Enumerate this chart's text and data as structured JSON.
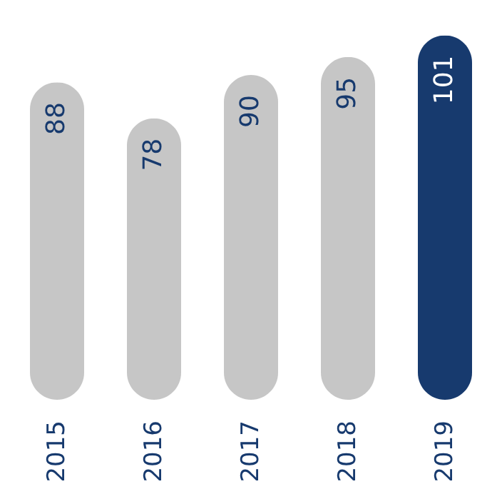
{
  "chart_data": {
    "type": "bar",
    "categories": [
      "2015",
      "2016",
      "2017",
      "2018",
      "2019"
    ],
    "values": [
      88,
      78,
      90,
      95,
      101
    ],
    "colors": [
      "#c6c6c6",
      "#c6c6c6",
      "#c6c6c6",
      "#c6c6c6",
      "#173a6e"
    ],
    "data_labels": true
  }
}
